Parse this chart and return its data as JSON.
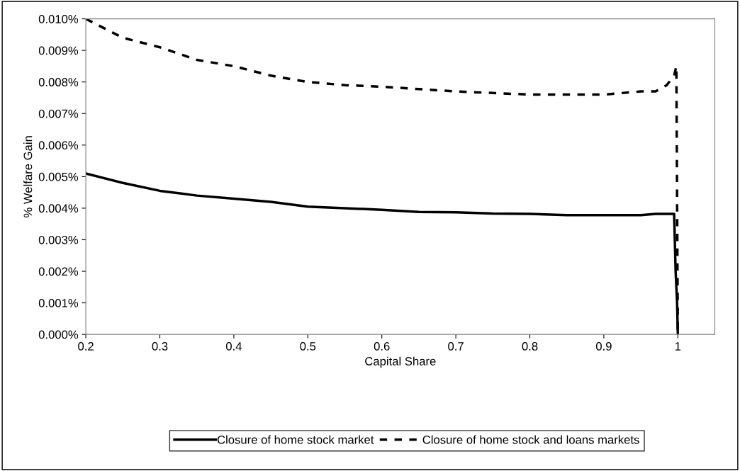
{
  "chart_data": {
    "type": "line",
    "xlabel": "Capital Share",
    "ylabel": "% Welfare Gain",
    "xlim": [
      0.2,
      1.05
    ],
    "xticks": [
      0.2,
      0.3,
      0.4,
      0.5,
      0.6,
      0.7,
      0.8,
      0.9,
      1
    ],
    "ylim": [
      0,
      0.01
    ],
    "yticks": [
      {
        "value": 0,
        "label": "0.000%"
      },
      {
        "value": 0.001,
        "label": "0.001%"
      },
      {
        "value": 0.002,
        "label": "0.002%"
      },
      {
        "value": 0.003,
        "label": "0.003%"
      },
      {
        "value": 0.004,
        "label": "0.004%"
      },
      {
        "value": 0.005,
        "label": "0.005%"
      },
      {
        "value": 0.006,
        "label": "0.006%"
      },
      {
        "value": 0.007,
        "label": "0.007%"
      },
      {
        "value": 0.008,
        "label": "0.008%"
      },
      {
        "value": 0.009,
        "label": "0.009%"
      },
      {
        "value": 0.01,
        "label": "0.010%"
      }
    ],
    "grid": false,
    "legend": "bottom",
    "marker": "none",
    "series": [
      {
        "name": "Closure of home stock market",
        "color": "#000000",
        "line_style": "solid",
        "x": [
          0.2,
          0.25,
          0.3,
          0.35,
          0.4,
          0.45,
          0.5,
          0.55,
          0.6,
          0.65,
          0.7,
          0.75,
          0.8,
          0.85,
          0.9,
          0.95,
          0.97,
          0.995,
          0.997,
          0.999,
          1.0
        ],
        "values": [
          0.0051,
          0.0048,
          0.00455,
          0.0044,
          0.0043,
          0.0042,
          0.00405,
          0.004,
          0.00395,
          0.00388,
          0.00387,
          0.00383,
          0.00382,
          0.00378,
          0.00378,
          0.00378,
          0.00382,
          0.00382,
          0.002,
          0.001,
          0.0
        ]
      },
      {
        "name": "Closure of home stock and loans markets",
        "color": "#000000",
        "line_style": "dashed",
        "x": [
          0.2,
          0.25,
          0.3,
          0.35,
          0.4,
          0.45,
          0.5,
          0.55,
          0.6,
          0.7,
          0.8,
          0.9,
          0.95,
          0.97,
          0.985,
          0.995,
          0.998,
          1.0
        ],
        "values": [
          0.01,
          0.0094,
          0.0091,
          0.0087,
          0.0085,
          0.0082,
          0.008,
          0.0079,
          0.00785,
          0.0077,
          0.0076,
          0.0076,
          0.0077,
          0.0077,
          0.0079,
          0.0082,
          0.0085,
          0.0
        ]
      }
    ]
  }
}
